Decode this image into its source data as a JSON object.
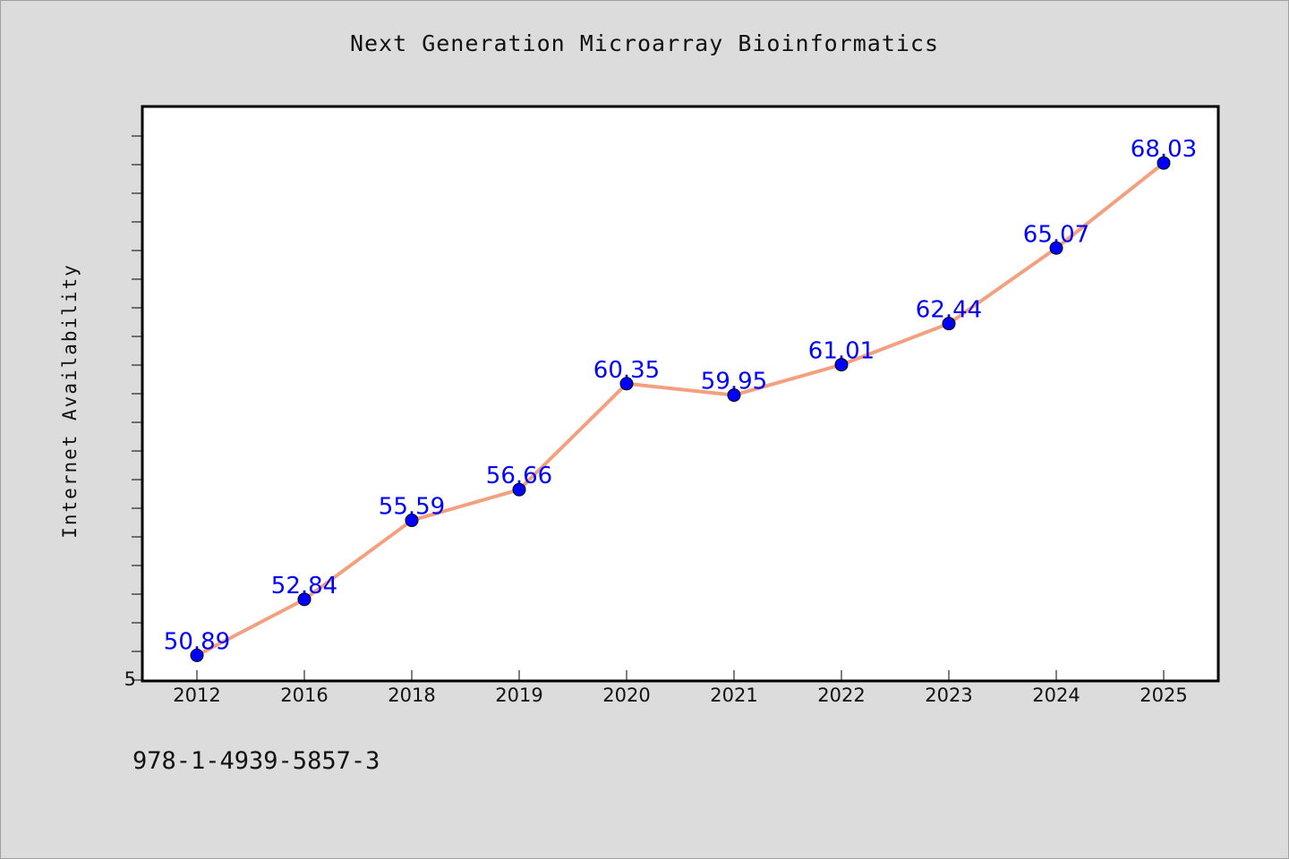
{
  "chart_data": {
    "type": "line",
    "title": "Next Generation Microarray Bioinformatics",
    "xlabel": "",
    "ylabel": "Internet Availability",
    "categories": [
      "2012",
      "2016",
      "2018",
      "2019",
      "2020",
      "2021",
      "2022",
      "2023",
      "2024",
      "2025"
    ],
    "series": [
      {
        "values": [
          50.89,
          52.84,
          55.59,
          56.66,
          60.35,
          59.95,
          61.01,
          62.44,
          65.07,
          68.03
        ],
        "labels": [
          "50.89",
          "52.84",
          "55.59",
          "56.66",
          "60.35",
          "59.95",
          "61.01",
          "62.44",
          "65.07",
          "68.03"
        ]
      }
    ],
    "ylim": [
      50,
      70
    ],
    "y_tick_labels": [
      "5"
    ],
    "grid": false,
    "line_color": "#f4a07f",
    "marker_color": "#0000ff",
    "label_color": "#0000ff"
  },
  "footer": {
    "isbn": "978-1-4939-5857-3"
  }
}
